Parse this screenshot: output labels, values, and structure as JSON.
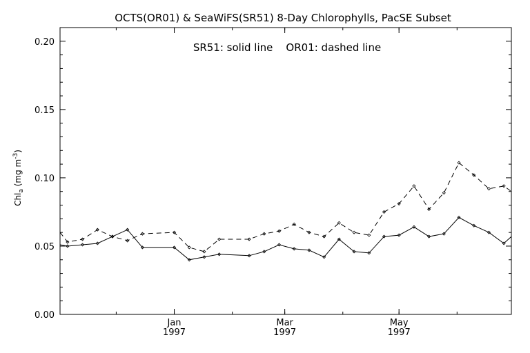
{
  "chart_data": {
    "type": "line",
    "title": "OCTS(OR01) & SeaWiFS(SR51) 8-Day Chlorophylls, PacSE Subset",
    "annotation": "SR51: solid line    OR01: dashed line",
    "ylabel_main": "Chl",
    "ylabel_sub": "a",
    "ylabel_unit": "(mg m",
    "ylabel_exp": "-3",
    "ylabel_close": ")",
    "ylim": [
      0,
      0.21
    ],
    "yticks": [
      "0.00",
      "0.05",
      "0.10",
      "0.15",
      "0.20"
    ],
    "xlim": [
      "1996-11-01",
      "1997-06-30"
    ],
    "xticks": [
      {
        "date": "1997-01-01",
        "month": "Jan",
        "year": "1997"
      },
      {
        "date": "1997-03-01",
        "month": "Mar",
        "year": "1997"
      },
      {
        "date": "1997-05-01",
        "month": "May",
        "year": "1997"
      }
    ],
    "series": [
      {
        "name": "SR51",
        "style": "solid",
        "color": "#000000",
        "x": [
          "1996-11-01",
          "1996-11-05",
          "1996-11-13",
          "1996-11-21",
          "1996-11-29",
          "1996-12-07",
          "1996-12-15",
          "1997-01-01",
          "1997-01-09",
          "1997-01-17",
          "1997-01-25",
          "1997-02-10",
          "1997-02-18",
          "1997-02-26",
          "1997-03-06",
          "1997-03-14",
          "1997-03-22",
          "1997-03-30",
          "1997-04-07",
          "1997-04-15",
          "1997-04-23",
          "1997-05-01",
          "1997-05-09",
          "1997-05-17",
          "1997-05-25",
          "1997-06-02",
          "1997-06-10",
          "1997-06-18",
          "1997-06-26",
          "1997-06-30"
        ],
        "values": [
          0.051,
          0.05,
          0.051,
          0.052,
          0.057,
          0.062,
          0.049,
          0.049,
          0.04,
          0.042,
          0.044,
          0.043,
          0.046,
          0.051,
          0.048,
          0.047,
          0.042,
          0.055,
          0.046,
          0.045,
          0.057,
          0.058,
          0.064,
          0.057,
          0.059,
          0.071,
          0.065,
          0.06,
          0.052,
          0.057
        ]
      },
      {
        "name": "OR01",
        "style": "dashed",
        "color": "#000000",
        "x": [
          "1996-11-01",
          "1996-11-05",
          "1996-11-13",
          "1996-11-21",
          "1996-11-29",
          "1996-12-07",
          "1996-12-15",
          "1997-01-01",
          "1997-01-09",
          "1997-01-17",
          "1997-01-25",
          "1997-02-10",
          "1997-02-18",
          "1997-02-26",
          "1997-03-06",
          "1997-03-14",
          "1997-03-22",
          "1997-03-30",
          "1997-04-07",
          "1997-04-15",
          "1997-04-23",
          "1997-05-01",
          "1997-05-09",
          "1997-05-17",
          "1997-05-25",
          "1997-06-02",
          "1997-06-10",
          "1997-06-18",
          "1997-06-26",
          "1997-06-30"
        ],
        "values": [
          0.06,
          0.053,
          0.055,
          0.062,
          0.057,
          0.054,
          0.059,
          0.06,
          0.049,
          0.046,
          0.055,
          0.055,
          0.059,
          0.061,
          0.066,
          0.06,
          0.057,
          0.067,
          0.06,
          0.058,
          0.075,
          0.081,
          0.094,
          0.077,
          0.089,
          0.111,
          0.102,
          0.092,
          0.094,
          0.09
        ]
      }
    ]
  }
}
